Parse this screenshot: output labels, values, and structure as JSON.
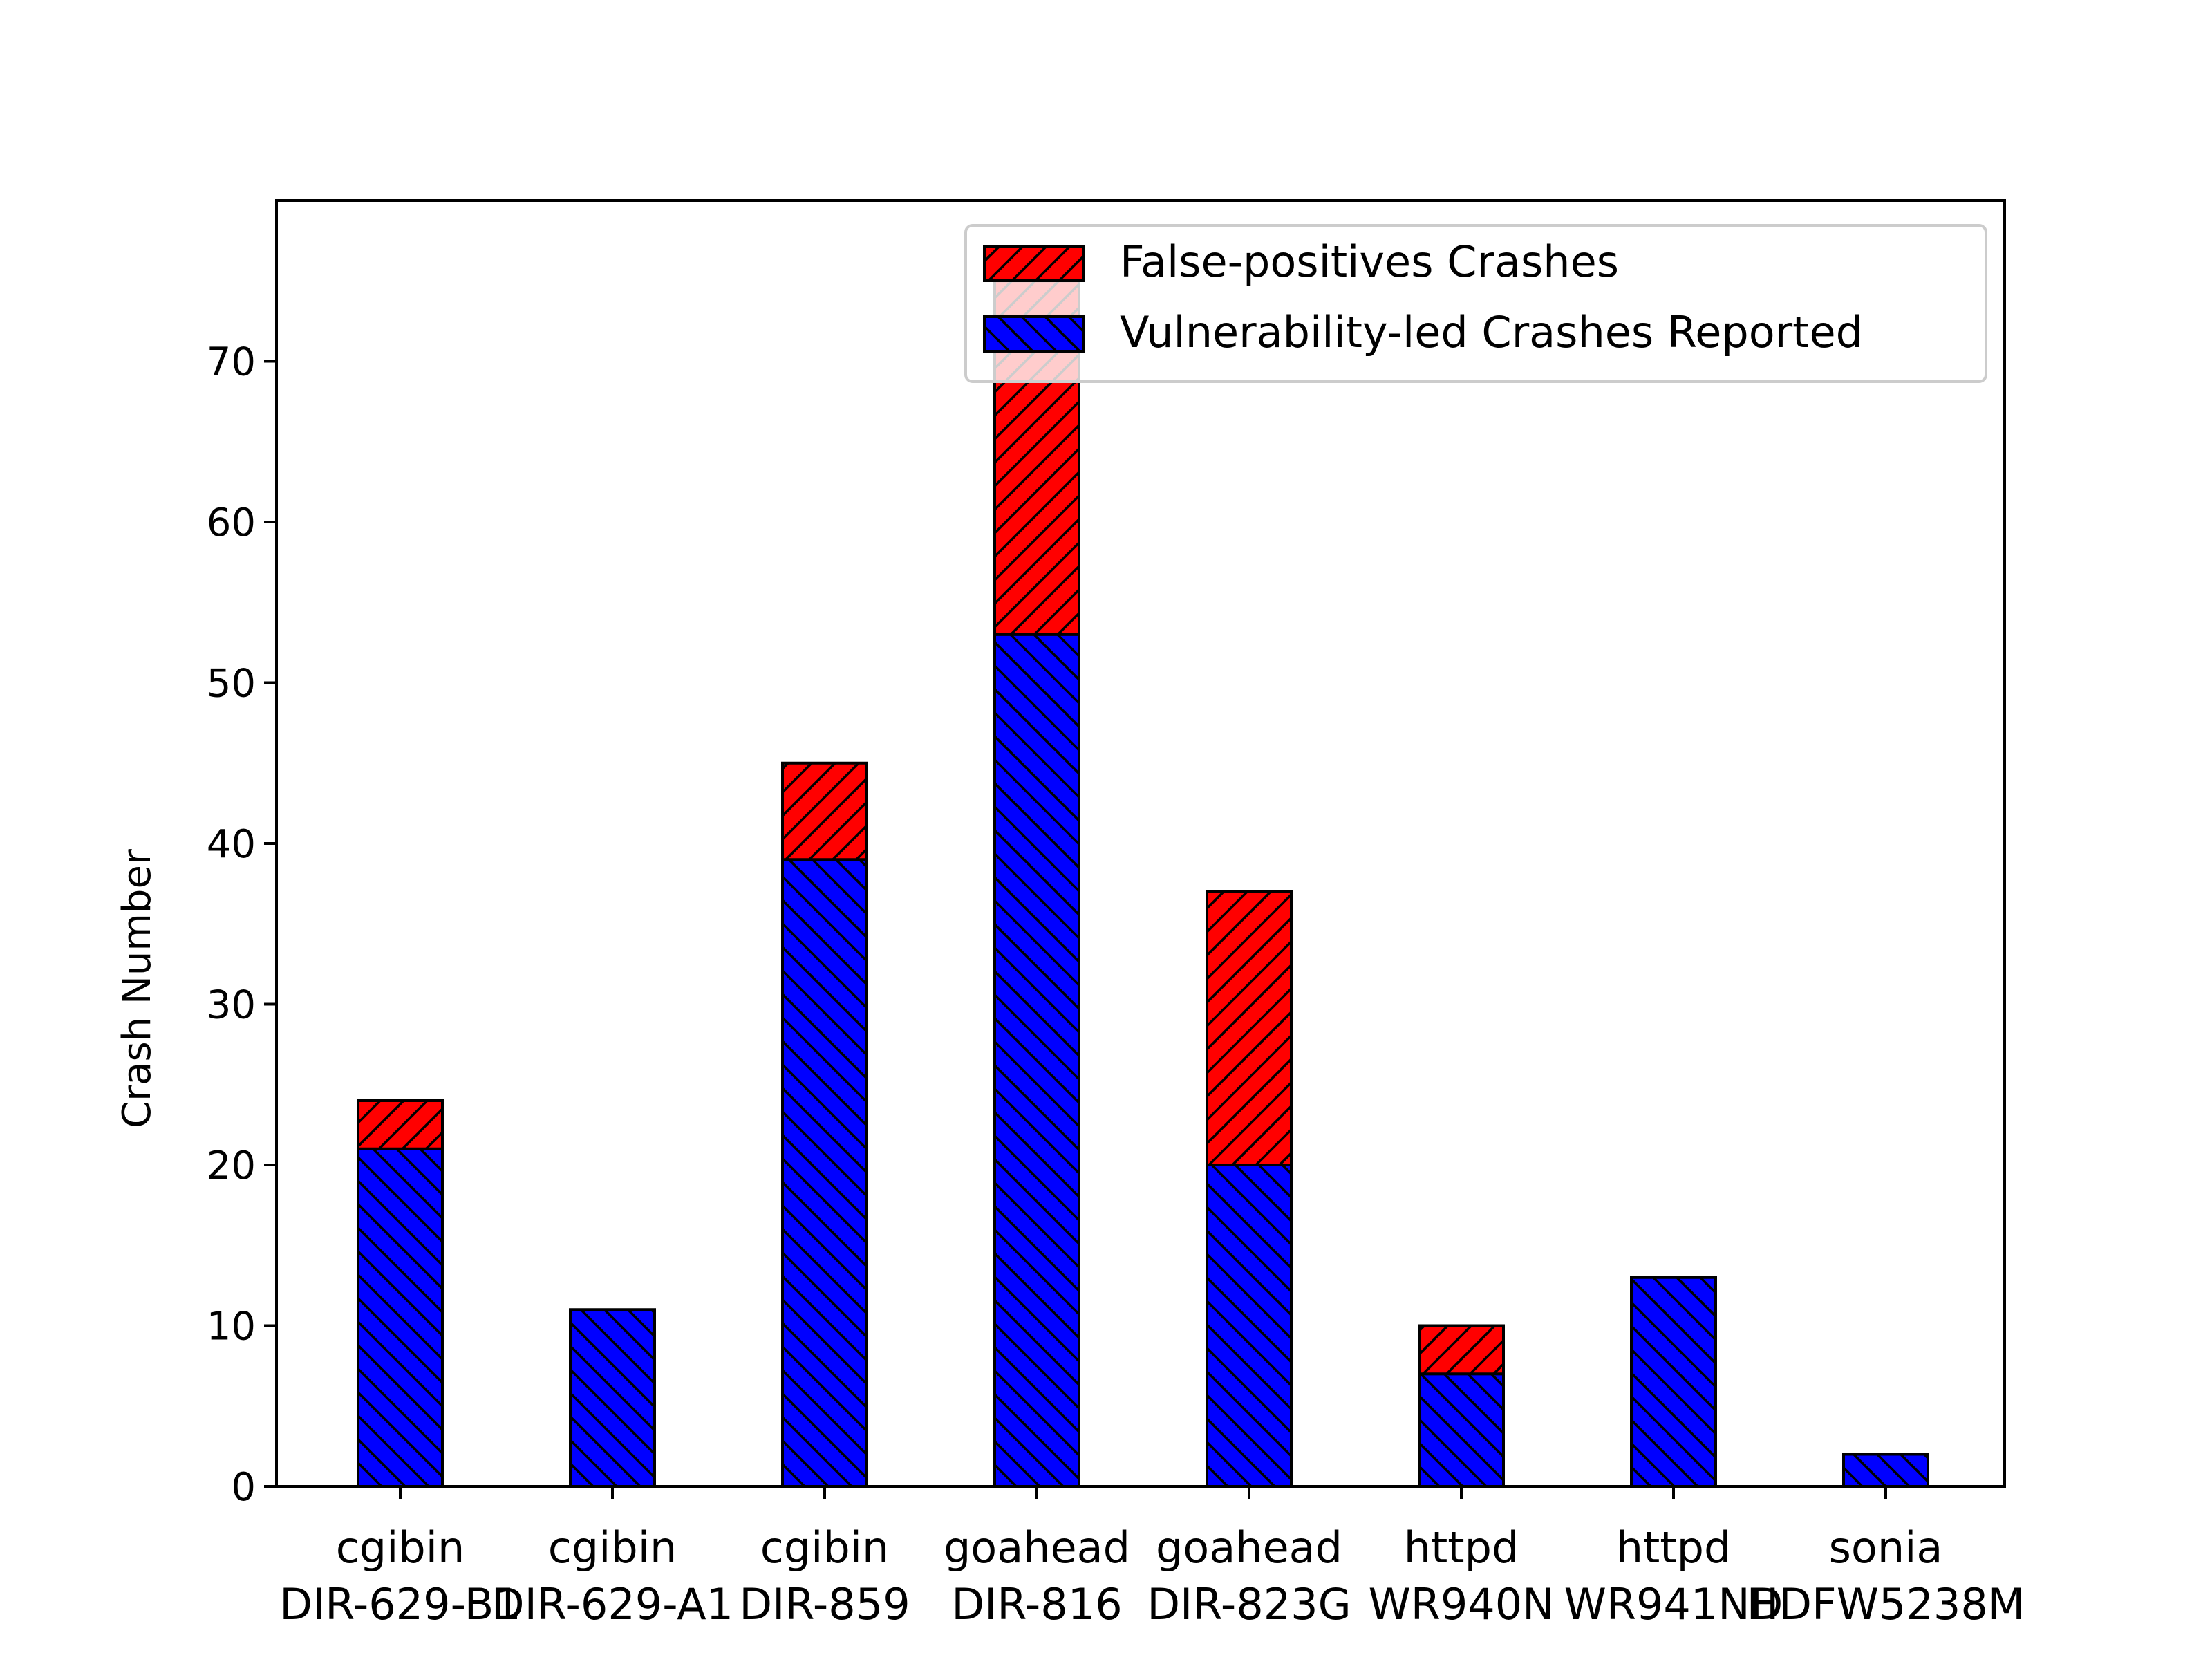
{
  "chart_data": {
    "type": "bar",
    "stacked": true,
    "title": "",
    "xlabel": "",
    "ylabel": "Crash Number",
    "ylim": [
      0,
      80
    ],
    "yticks": [
      0,
      10,
      20,
      30,
      40,
      50,
      60,
      70
    ],
    "grid": false,
    "legend_position": "top-right",
    "categories": [
      {
        "line1": "cgibin",
        "line2": "DIR-629-B1"
      },
      {
        "line1": "cgibin",
        "line2": "DIR-629-A1"
      },
      {
        "line1": "cgibin",
        "line2": "DIR-859"
      },
      {
        "line1": "goahead",
        "line2": "DIR-816"
      },
      {
        "line1": "goahead",
        "line2": "DIR-823G"
      },
      {
        "line1": "httpd",
        "line2": "WR940N"
      },
      {
        "line1": "httpd",
        "line2": "WR941ND"
      },
      {
        "line1": "sonia",
        "line2": "HDFW5238M"
      }
    ],
    "series": [
      {
        "name": "Vulnerability-led Crashes Reported",
        "color": "#0000ff",
        "hatch": "backslash",
        "values": [
          21,
          11,
          39,
          53,
          20,
          7,
          13,
          2
        ]
      },
      {
        "name": "False-positives Crashes",
        "color": "#ff0000",
        "hatch": "slash",
        "values": [
          3,
          0,
          6,
          22,
          17,
          3,
          0,
          0
        ]
      }
    ],
    "legend_order": [
      "False-positives Crashes",
      "Vulnerability-led Crashes Reported"
    ]
  }
}
